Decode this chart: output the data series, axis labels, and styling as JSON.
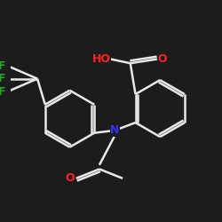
{
  "background_color": "#1c1c1c",
  "bond_color": "#e8e8e8",
  "atom_colors": {
    "O": "#ff2222",
    "N": "#3333ff",
    "F": "#22aa22",
    "C": "#e8e8e8",
    "H": "#e8e8e8"
  },
  "lw": 1.8,
  "r": 0.55,
  "fontsize": 9
}
